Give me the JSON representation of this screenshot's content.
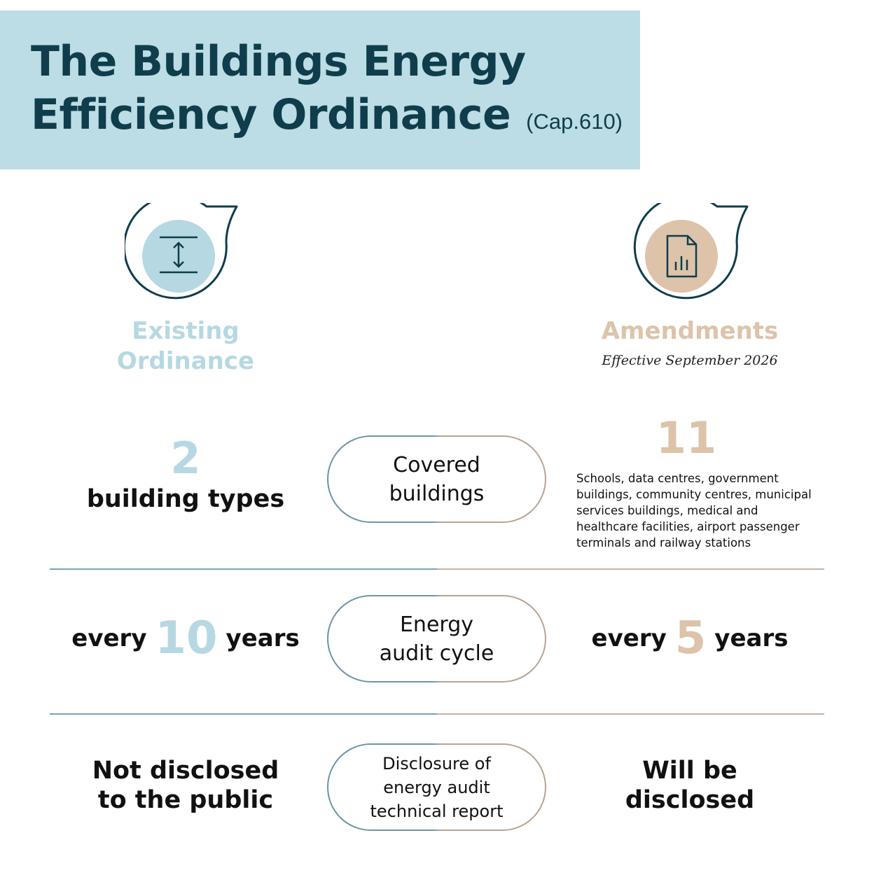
{
  "header": {
    "title_line1": "The Buildings Energy",
    "title_line2": "Efficiency Ordinance",
    "cap": "(Cap.610)"
  },
  "columns": {
    "existing": {
      "heading_line1": "Existing",
      "heading_line2": "Ordinance",
      "icon": "vertical-arrows-icon",
      "accent_color": "#b6d8e2"
    },
    "amendments": {
      "heading": "Amendments",
      "subheading": "Effective September 2026",
      "icon": "document-chart-icon",
      "accent_color": "#dcc3aa"
    }
  },
  "rows": {
    "covered": {
      "center_line1": "Covered",
      "center_line2": "buildings",
      "existing_number": "2",
      "existing_label": "building types",
      "amend_number": "11",
      "amend_desc_lines": [
        "Schools, data centres, government",
        "buildings, community centres, municipal",
        "services buildings, medical and",
        "healthcare facilities, airport passenger",
        "terminals and railway stations"
      ]
    },
    "audit": {
      "center_line1": "Energy",
      "center_line2": "audit cycle",
      "existing_prefix": "every",
      "existing_number": "10",
      "existing_suffix": "years",
      "amend_prefix": "every",
      "amend_number": "5",
      "amend_suffix": "years"
    },
    "disclosure": {
      "center_line1": "Disclosure of",
      "center_line2": "energy audit",
      "center_line3": "technical report",
      "existing_line1": "Not disclosed",
      "existing_line2": "to the public",
      "amend_line1": "Will be",
      "amend_line2": "disclosed"
    }
  },
  "colors": {
    "title": "#0f3d4c",
    "header_band": "#bcdde5",
    "icon_outline": "#0f3d4c",
    "divider_left": "#7aa2b3",
    "divider_right": "#c5b3a4"
  }
}
